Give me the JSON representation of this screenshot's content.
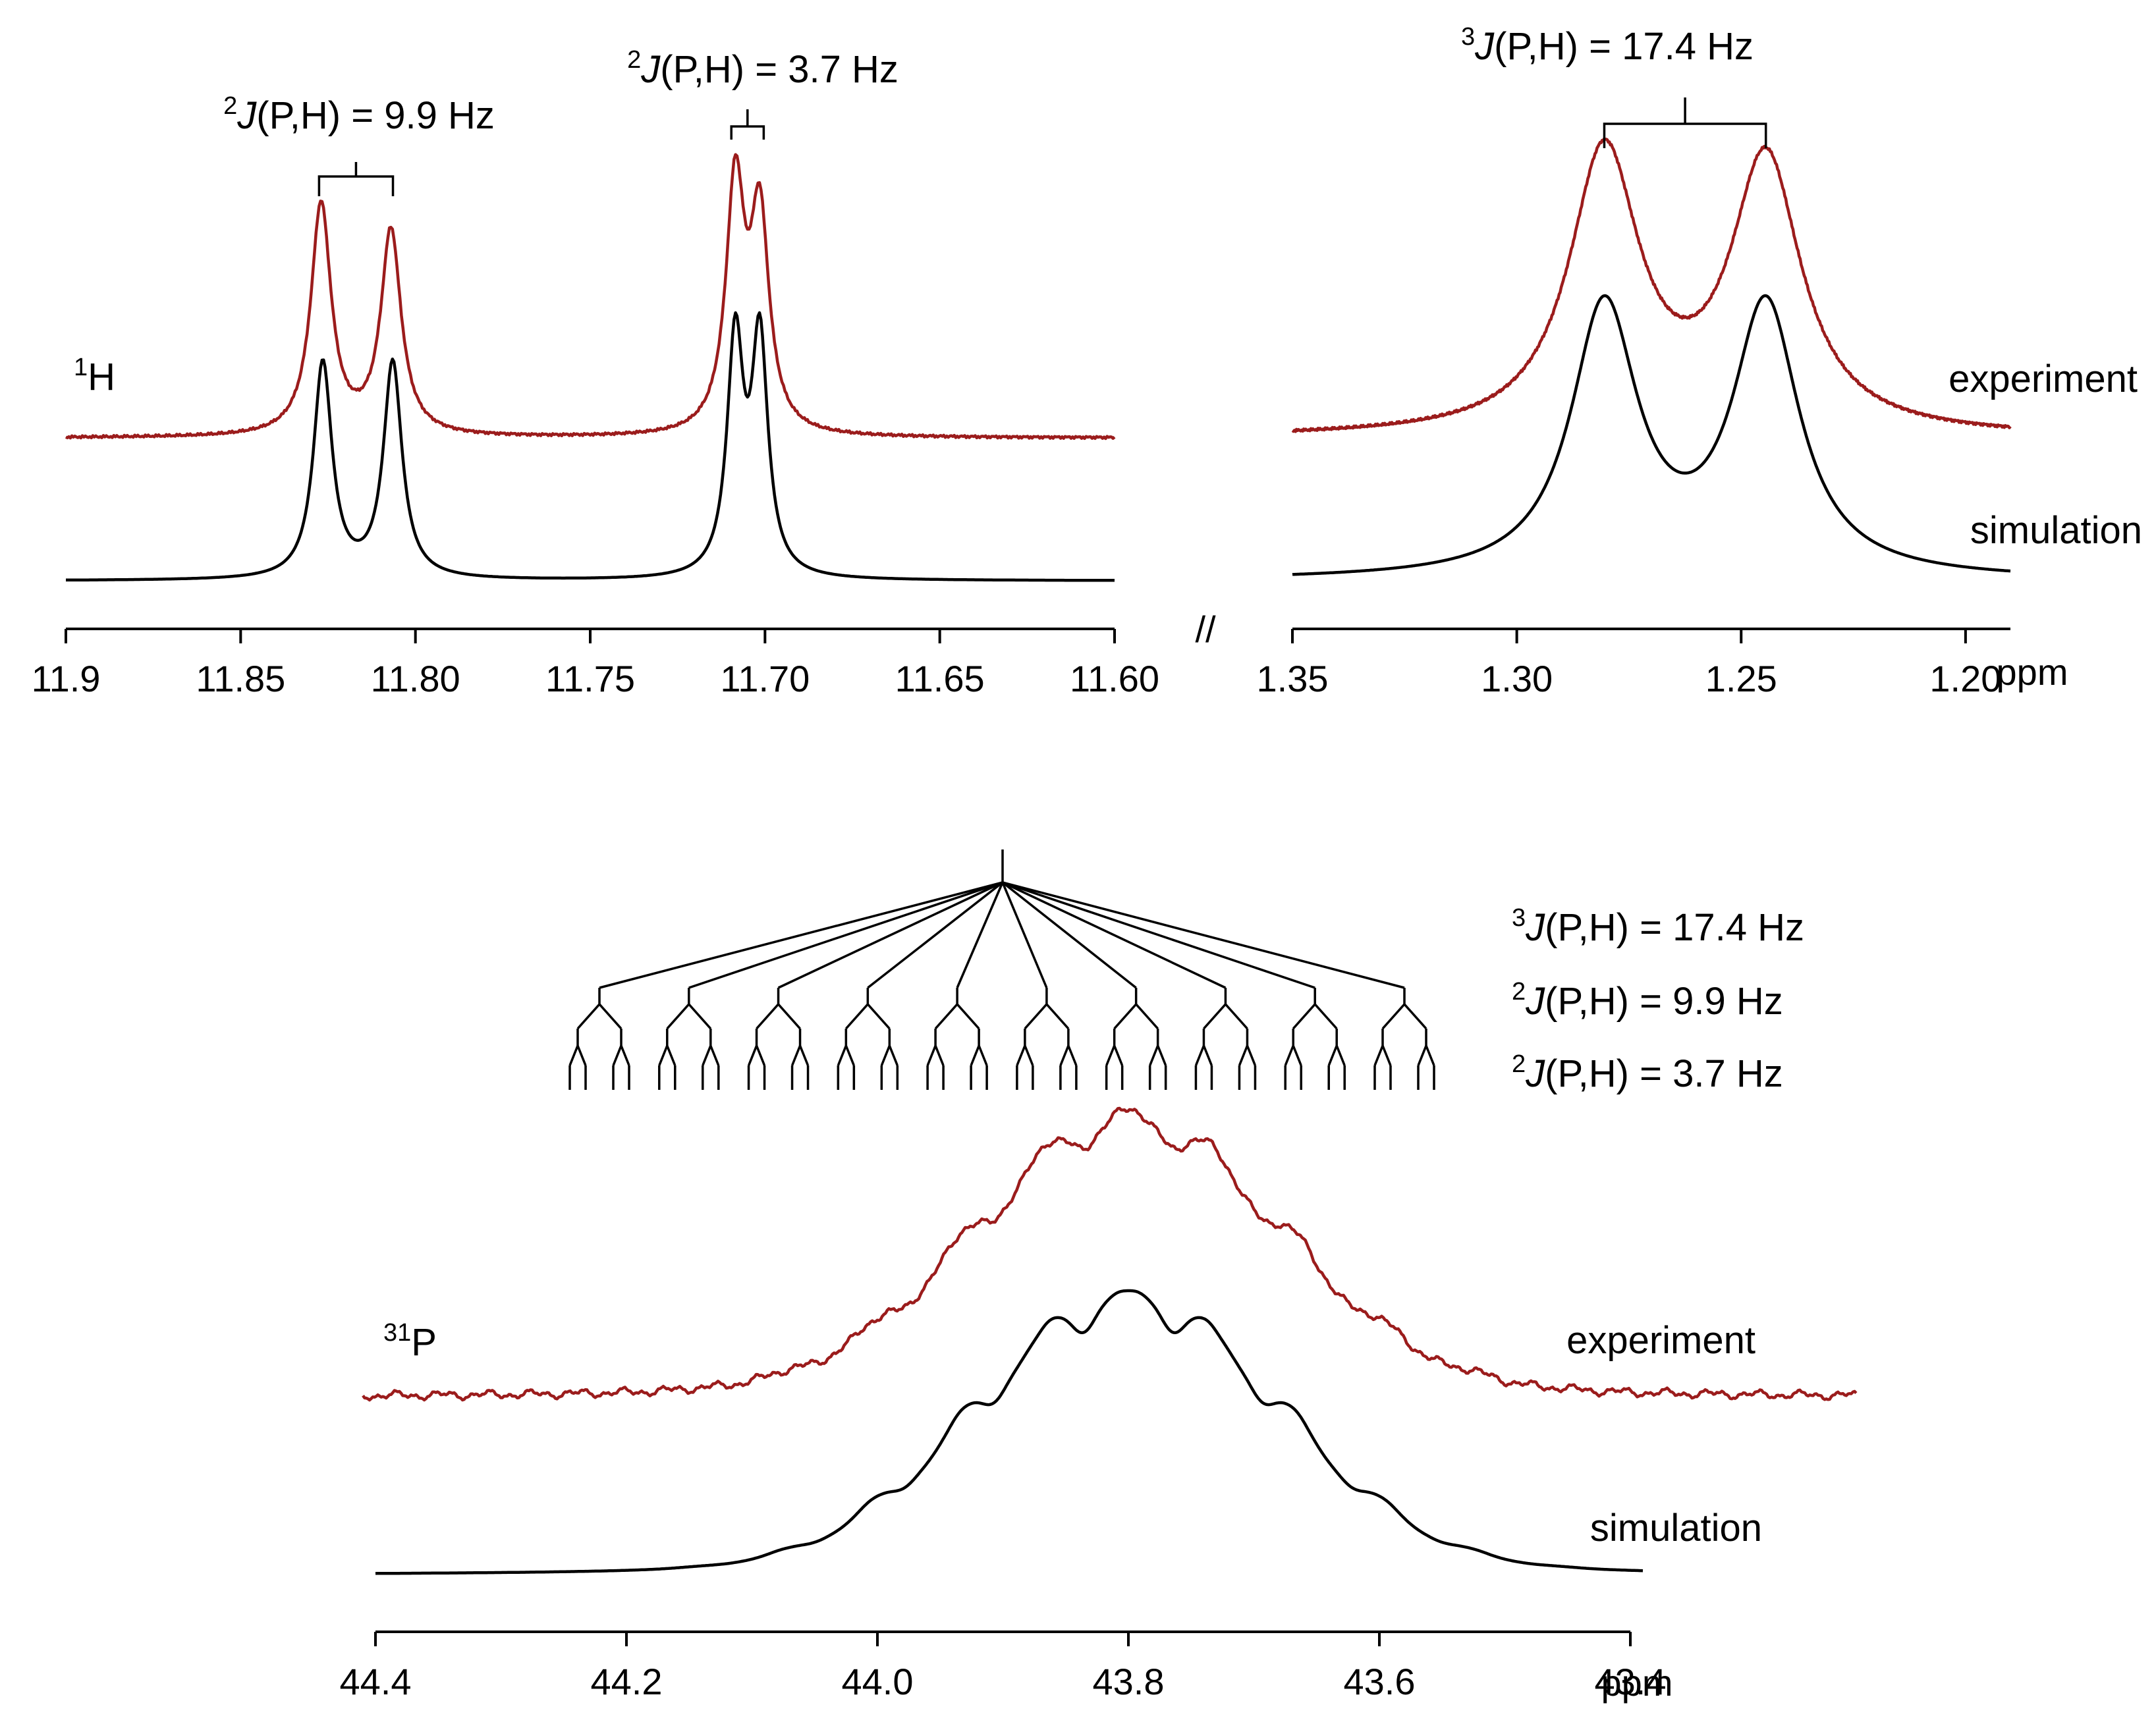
{
  "chart_data": [
    {
      "type": "line",
      "panel": "1H spectrum",
      "nucleus": "1H",
      "nucleus_sup": "1",
      "nucleus_base": "H",
      "xlabel": "ppm",
      "x_direction": "decreasing",
      "segments": [
        {
          "name": "low-field",
          "xlim": [
            11.9,
            11.6
          ],
          "ticks": [
            "11.9",
            "11.85",
            "11.80",
            "11.75",
            "11.70",
            "11.65",
            "11.60"
          ],
          "tick_values": [
            11.9,
            11.85,
            11.8,
            11.75,
            11.7,
            11.65,
            11.6
          ]
        },
        {
          "name": "high-field",
          "xlim": [
            1.35,
            1.19
          ],
          "ticks": [
            "1.35",
            "1.30",
            "1.25",
            "1.20"
          ],
          "tick_values": [
            1.35,
            1.3,
            1.25,
            1.2
          ]
        }
      ],
      "axis_break": "//",
      "series": [
        {
          "name": "experiment",
          "color": "#9b1c1c",
          "peaks": [
            {
              "center": 11.827,
              "height": 0.94,
              "width": 0.0035
            },
            {
              "center": 11.807,
              "height": 0.83,
              "width": 0.0035
            },
            {
              "center": 11.7085,
              "height": 1.0,
              "width": 0.0032
            },
            {
              "center": 11.7015,
              "height": 0.86,
              "width": 0.0032
            },
            {
              "center": 1.2805,
              "height": 1.0,
              "width": 0.0095
            },
            {
              "center": 1.2445,
              "height": 0.97,
              "width": 0.0095
            }
          ]
        },
        {
          "name": "simulation",
          "color": "#000000",
          "peaks": [
            {
              "center": 11.8265,
              "height": 0.92,
              "width": 0.0032
            },
            {
              "center": 11.8065,
              "height": 0.92,
              "width": 0.0032
            },
            {
              "center": 11.7085,
              "height": 1.0,
              "width": 0.0028
            },
            {
              "center": 11.7015,
              "height": 1.0,
              "width": 0.0028
            },
            {
              "center": 1.2805,
              "height": 1.0,
              "width": 0.009
            },
            {
              "center": 1.2445,
              "height": 1.0,
              "width": 0.009
            }
          ]
        }
      ],
      "annotations": [
        {
          "text_pre": "2",
          "text_italic": "J",
          "text_post": "(P,H)  = 9.9 Hz",
          "between": [
            11.827,
            11.807
          ]
        },
        {
          "text_pre": "2",
          "text_italic": "J",
          "text_post": "(P,H)  = 3.7 Hz",
          "between": [
            11.7085,
            11.7015
          ]
        },
        {
          "text_pre": "3",
          "text_italic": "J",
          "text_post": "(P,H)  = 17.4 Hz",
          "between": [
            1.2805,
            1.2445
          ]
        }
      ],
      "trace_labels": [
        "experiment",
        "simulation"
      ]
    },
    {
      "type": "line",
      "panel": "31P spectrum",
      "nucleus": "31P",
      "nucleus_sup": "31",
      "nucleus_base": "P",
      "xlabel": "ppm",
      "x_direction": "decreasing",
      "xlim": [
        44.4,
        43.4
      ],
      "ticks": [
        "44.4",
        "44.2",
        "44.0",
        "43.8",
        "43.6",
        "43.4"
      ],
      "tick_values": [
        44.4,
        44.2,
        44.0,
        43.8,
        43.6,
        43.4
      ],
      "multiplet": {
        "center": 43.8,
        "J3_ppm": 0.0715,
        "multiplicity": 10,
        "J2a_ppm": 0.0406,
        "J2b_ppm": 0.0152
      },
      "series": [
        {
          "name": "experiment",
          "color": "#9b1c1c"
        },
        {
          "name": "simulation",
          "color": "#000000"
        }
      ],
      "coupling_list": [
        {
          "sup": "3",
          "italic": "J",
          "rest": "(P,H)  = 17.4 Hz"
        },
        {
          "sup": "2",
          "italic": "J",
          "rest": "(P,H)  = 9.9 Hz"
        },
        {
          "sup": "2",
          "italic": "J",
          "rest": "(P,H)  = 3.7 Hz"
        }
      ],
      "trace_labels": [
        "experiment",
        "simulation"
      ]
    }
  ]
}
